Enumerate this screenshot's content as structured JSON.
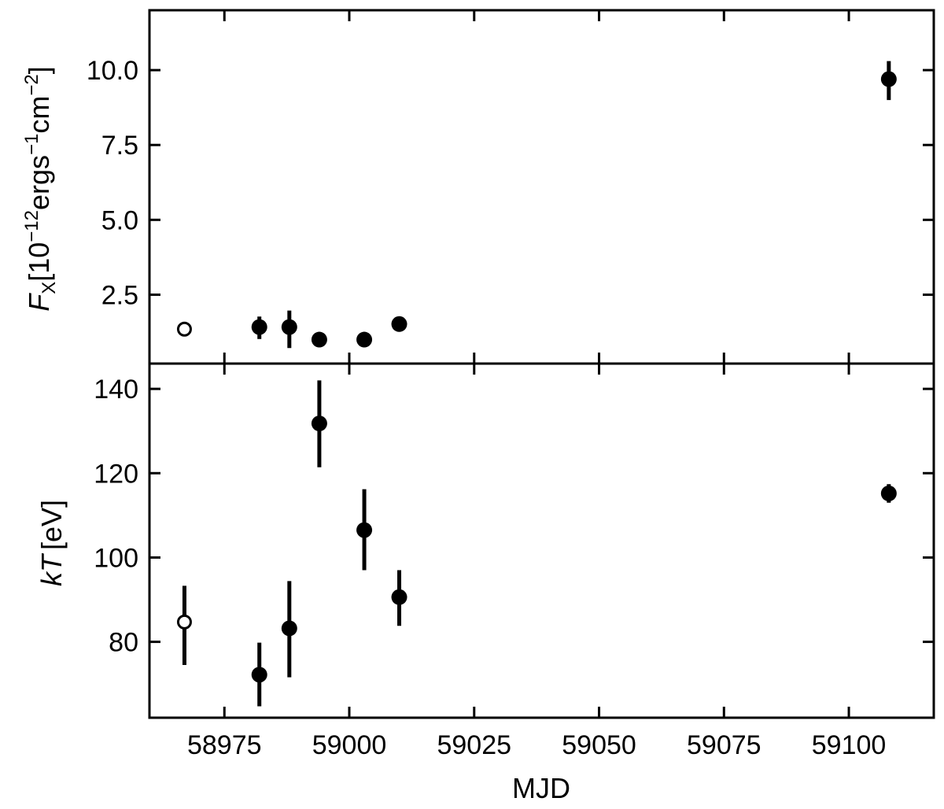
{
  "chart_data": [
    {
      "type": "scatter",
      "panel": "top",
      "ylabel": {
        "symbol": "F",
        "subscript": "X",
        "unit_prefix": "[10",
        "unit_exp1": "−12",
        "unit_mid": "ergs",
        "unit_exp2": "−1",
        "unit_cm": "cm",
        "unit_exp3": "−2",
        "unit_suffix": "]"
      },
      "xlabel": "",
      "xlim": [
        58960,
        59117
      ],
      "ylim": [
        0.2,
        12.0
      ],
      "y_ticks": [
        2.5,
        5.0,
        7.5,
        10.0
      ],
      "y_tick_labels": [
        "2.5",
        "5.0",
        "7.5",
        "10.0"
      ],
      "points": [
        {
          "x": 58967,
          "y": 1.35,
          "err_lo": 0.0,
          "err_hi": 0.0,
          "filled": false
        },
        {
          "x": 58982,
          "y": 1.42,
          "err_lo": 0.4,
          "err_hi": 0.35,
          "filled": true
        },
        {
          "x": 58988,
          "y": 1.42,
          "err_lo": 0.7,
          "err_hi": 0.55,
          "filled": true
        },
        {
          "x": 58994,
          "y": 1.0,
          "err_lo": 0.1,
          "err_hi": 0.1,
          "filled": true
        },
        {
          "x": 59003,
          "y": 1.0,
          "err_lo": 0.1,
          "err_hi": 0.1,
          "filled": true
        },
        {
          "x": 59010,
          "y": 1.52,
          "err_lo": 0.25,
          "err_hi": 0.2,
          "filled": true
        },
        {
          "x": 59108,
          "y": 9.7,
          "err_lo": 0.7,
          "err_hi": 0.6,
          "filled": true
        }
      ]
    },
    {
      "type": "scatter",
      "panel": "bottom",
      "ylabel": {
        "symbol": "kT",
        "unit": "[eV]"
      },
      "xlabel": "MJD",
      "xlim": [
        58960,
        59117
      ],
      "ylim": [
        62,
        146
      ],
      "y_ticks": [
        80,
        100,
        120,
        140
      ],
      "y_tick_labels": [
        "80",
        "100",
        "120",
        "140"
      ],
      "x_ticks": [
        58975,
        59000,
        59025,
        59050,
        59075,
        59100
      ],
      "x_tick_labels": [
        "58975",
        "59000",
        "59025",
        "59050",
        "59075",
        "59100"
      ],
      "points": [
        {
          "x": 58967,
          "y": 84.7,
          "err_lo": 10.2,
          "err_hi": 8.6,
          "filled": false
        },
        {
          "x": 58982,
          "y": 72.2,
          "err_lo": 7.5,
          "err_hi": 7.6,
          "filled": true
        },
        {
          "x": 58988,
          "y": 83.2,
          "err_lo": 11.6,
          "err_hi": 11.2,
          "filled": true
        },
        {
          "x": 58994,
          "y": 131.8,
          "err_lo": 10.4,
          "err_hi": 10.2,
          "filled": true
        },
        {
          "x": 59003,
          "y": 106.5,
          "err_lo": 9.5,
          "err_hi": 9.7,
          "filled": true
        },
        {
          "x": 59010,
          "y": 90.6,
          "err_lo": 6.8,
          "err_hi": 6.4,
          "filled": true
        },
        {
          "x": 59108,
          "y": 115.2,
          "err_lo": 2.2,
          "err_hi": 2.2,
          "filled": true
        }
      ]
    }
  ]
}
